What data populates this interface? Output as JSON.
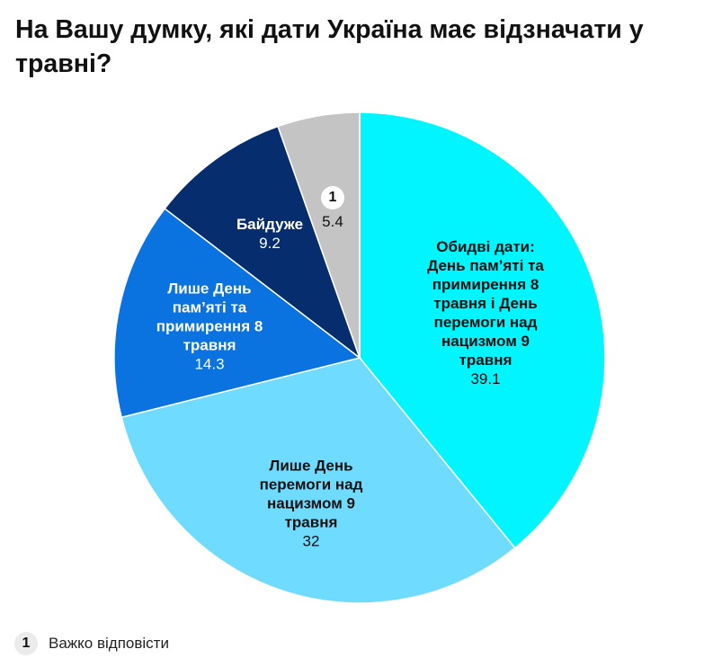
{
  "chart_data": {
    "type": "pie",
    "title": "На Вашу думку, які дати Україна має відзначати у травні?",
    "slices": [
      {
        "label": "Обидві дати: День пам’яті та примирення 8 травня і День перемоги над нацизмом 9 травня",
        "label_lines": [
          "Обидві дати:",
          "День пам’яті та",
          "примирення 8",
          "травня і День",
          "перемоги над",
          "нацизмом 9",
          "травня"
        ],
        "value": 39.1,
        "value_label": "39.1",
        "color": "#00f5ff"
      },
      {
        "label": "Лише День перемоги над нацизмом 9 травня",
        "label_lines": [
          "Лише День",
          "перемоги над",
          "нацизмом 9",
          "травня"
        ],
        "value": 32,
        "value_label": "32",
        "color": "#6fdcff"
      },
      {
        "label": "Лише День пам’яті та примирення 8 травня",
        "label_lines": [
          "Лише День",
          "пам’яті та",
          "примирення 8",
          "травня"
        ],
        "value": 14.3,
        "value_label": "14.3",
        "color": "#0a73e0"
      },
      {
        "label": "Байдуже",
        "label_lines": [
          "Байдуже"
        ],
        "value": 9.2,
        "value_label": "9.2",
        "color": "#062d6e"
      },
      {
        "label": "Важко відповісти",
        "marker": "1",
        "value": 5.4,
        "value_label": "5.4",
        "color": "#c4c4c4"
      }
    ],
    "start_angle": "top",
    "direction": "clockwise"
  },
  "legend": {
    "marker": "1",
    "text": "Важко відповісти"
  }
}
